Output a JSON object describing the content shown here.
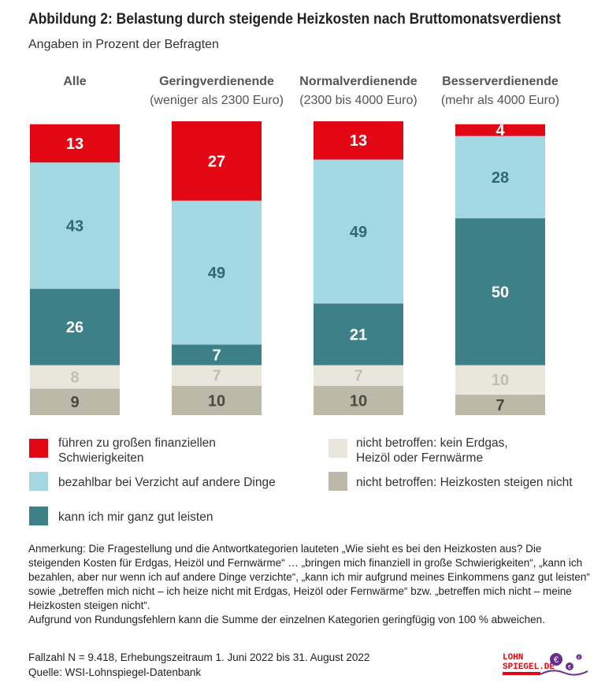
{
  "title": "Abbildung 2: Belastung durch steigende Heizkosten nach Bruttomonatsverdienst",
  "subtitle": "Angaben in Prozent der Befragten",
  "chart_data": {
    "type": "bar",
    "stacked": true,
    "categories": [
      {
        "label": "Alle",
        "sublabel": ""
      },
      {
        "label": "Geringverdienende",
        "sublabel": "(weniger als 2300 Euro)"
      },
      {
        "label": "Normalverdienende",
        "sublabel": "(2300 bis 4000 Euro)"
      },
      {
        "label": "Besserverdienende",
        "sublabel": "(mehr als 4000 Euro)"
      }
    ],
    "series": [
      {
        "name": "führen zu großen finanziellen Schwierigkeiten",
        "color": "#e30613",
        "label_color": "#ffffff",
        "values": [
          13,
          27,
          13,
          4
        ]
      },
      {
        "name": "bezahlbar bei Verzicht auf andere Dinge",
        "color": "#a3d7e1",
        "label_color": "#2c6a71",
        "values": [
          43,
          49,
          49,
          28
        ]
      },
      {
        "name": "kann ich mir ganz gut leisten",
        "color": "#3d8087",
        "label_color": "#ffffff",
        "values": [
          26,
          7,
          21,
          50
        ]
      },
      {
        "name": "nicht betroffen: kein Erdgas, Heizöl oder Fernwärme",
        "color": "#e9e7db",
        "label_color": "#c2beae",
        "values": [
          8,
          7,
          7,
          10
        ]
      },
      {
        "name": "nicht betroffen: Heizkosten steigen nicht",
        "color": "#bdb9a9",
        "label_color": "#4a4a3c",
        "values": [
          9,
          10,
          10,
          7
        ]
      }
    ]
  },
  "legend": [
    {
      "text": "führen zu großen finanziellen Schwierigkeiten"
    },
    {
      "text": "bezahlbar bei Verzicht auf andere Dinge"
    },
    {
      "text": "kann ich mir ganz gut leisten"
    },
    {
      "text": "nicht betroffen: kein Erdgas, Heizöl oder Fernwärme"
    },
    {
      "text": "nicht betroffen: Heizkosten steigen nicht"
    }
  ],
  "note": "Anmerkung: Die Fragestellung und die Antwortkategorien lauteten „Wie sieht es bei den Heizkosten aus? Die steigenden Kosten für Erdgas, Heizöl und Fernwärme“ … „bringen mich finanziell in große Schwierigkeiten“, „kann ich bezahlen, aber nur wenn ich auf andere Dinge verzichte“, „kann ich mir aufgrund meines Einkommens ganz gut leisten“ sowie „betreffen mich nicht – ich heize nicht mit Erdgas, Heizöl oder Fernwärme“ bzw. „betreffen mich nicht – meine Heizkosten steigen nicht“.",
  "note2": "Aufgrund von Rundungsfehlern kann die Summe der einzelnen Kategorien geringfügig von 100 % abweichen.",
  "footer": {
    "sample": "Fallzahl N = 9.418, Erhebungszeitraum 1. Juni 2022 bis 31. August 2022",
    "source": "Quelle: WSI-Lohnspiegel-Datenbank"
  },
  "logo": {
    "line1": "LOHN",
    "line2": "SPIEGEL.DE"
  }
}
